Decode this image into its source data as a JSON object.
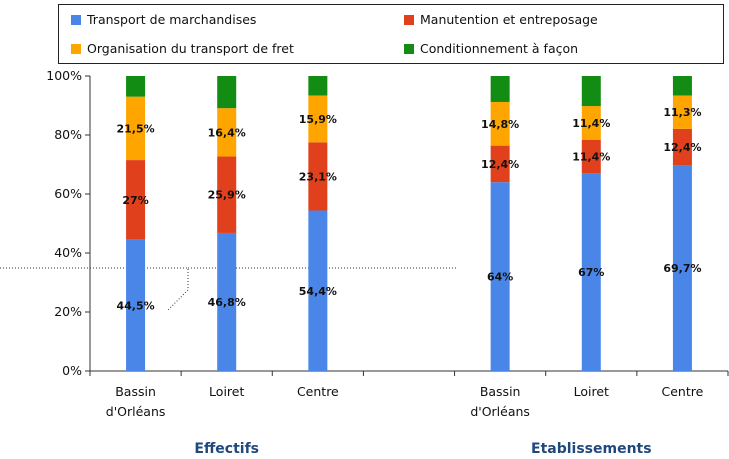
{
  "legend": [
    {
      "label": "Transport de marchandises",
      "color": "#4a86e8"
    },
    {
      "label": "Manutention et entreposage",
      "color": "#e0401b"
    },
    {
      "label": "Organisation du transport de fret",
      "color": "#ffa500"
    },
    {
      "label": "Conditionnement à façon",
      "color": "#128c12"
    }
  ],
  "chart_data": {
    "type": "bar",
    "stacked": true,
    "percent_axis": true,
    "ylim": [
      0,
      100
    ],
    "yticks": [
      "0%",
      "20%",
      "40%",
      "60%",
      "80%",
      "100%"
    ],
    "groups": [
      "Effectifs",
      "Etablissements"
    ],
    "categories": [
      {
        "line1": "Bassin",
        "line2": "d'Orléans",
        "group": 0
      },
      {
        "line1": "Loiret",
        "line2": "",
        "group": 0
      },
      {
        "line1": "Centre",
        "line2": "",
        "group": 0
      },
      {
        "line1": "Bassin",
        "line2": "d'Orléans",
        "group": 1
      },
      {
        "line1": "Loiret",
        "line2": "",
        "group": 1
      },
      {
        "line1": "Centre",
        "line2": "",
        "group": 1
      }
    ],
    "series": [
      {
        "name": "Transport de marchandises",
        "color": "#4a86e8",
        "values": [
          44.5,
          46.8,
          54.4,
          64,
          67,
          69.7
        ],
        "labels": [
          "44,5%",
          "46,8%",
          "54,4%",
          "64%",
          "67%",
          "69,7%"
        ]
      },
      {
        "name": "Manutention et entreposage",
        "color": "#e0401b",
        "values": [
          27,
          25.9,
          23.1,
          12.4,
          11.4,
          12.4
        ],
        "labels": [
          "27%",
          "25,9%",
          "23,1%",
          "12,4%",
          "11,4%",
          "12,4%"
        ]
      },
      {
        "name": "Organisation du transport de fret",
        "color": "#ffa500",
        "values": [
          21.5,
          16.4,
          15.9,
          14.8,
          11.4,
          11.3
        ],
        "labels": [
          "21,5%",
          "16,4%",
          "15,9%",
          "14,8%",
          "11,4%",
          "11,3%"
        ]
      },
      {
        "name": "Conditionnement à façon",
        "color": "#128c12",
        "values": [
          7,
          10.9,
          6.6,
          8.8,
          10.2,
          6.6
        ],
        "labels": [
          "",
          "",
          "",
          "",
          "",
          ""
        ]
      }
    ]
  }
}
